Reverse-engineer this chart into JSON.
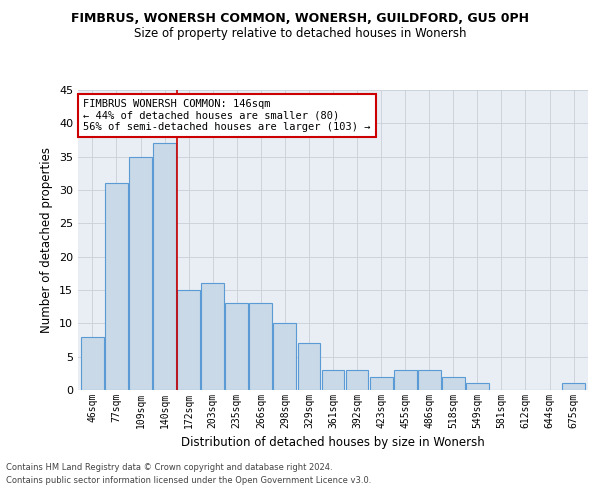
{
  "title": "FIMBRUS, WONERSH COMMON, WONERSH, GUILDFORD, GU5 0PH",
  "subtitle": "Size of property relative to detached houses in Wonersh",
  "xlabel": "Distribution of detached houses by size in Wonersh",
  "ylabel": "Number of detached properties",
  "bar_values": [
    8,
    31,
    35,
    37,
    15,
    16,
    13,
    13,
    10,
    7,
    3,
    3,
    2,
    3,
    3,
    2,
    1,
    0,
    0,
    0,
    1
  ],
  "bin_labels": [
    "46sqm",
    "77sqm",
    "109sqm",
    "140sqm",
    "172sqm",
    "203sqm",
    "235sqm",
    "266sqm",
    "298sqm",
    "329sqm",
    "361sqm",
    "392sqm",
    "423sqm",
    "455sqm",
    "486sqm",
    "518sqm",
    "549sqm",
    "581sqm",
    "612sqm",
    "644sqm",
    "675sqm"
  ],
  "bar_color": "#c9d9e8",
  "bar_edge_color": "#5b9bd5",
  "marker_bin_index": 3,
  "annotation_text": "FIMBRUS WONERSH COMMON: 146sqm\n← 44% of detached houses are smaller (80)\n56% of semi-detached houses are larger (103) →",
  "annotation_box_color": "#ffffff",
  "annotation_box_edge": "#cc0000",
  "marker_line_color": "#cc0000",
  "ylim": [
    0,
    45
  ],
  "yticks": [
    0,
    5,
    10,
    15,
    20,
    25,
    30,
    35,
    40,
    45
  ],
  "footer_line1": "Contains HM Land Registry data © Crown copyright and database right 2024.",
  "footer_line2": "Contains public sector information licensed under the Open Government Licence v3.0.",
  "grid_color": "#c8d0d8",
  "background_color": "#e8eef4"
}
